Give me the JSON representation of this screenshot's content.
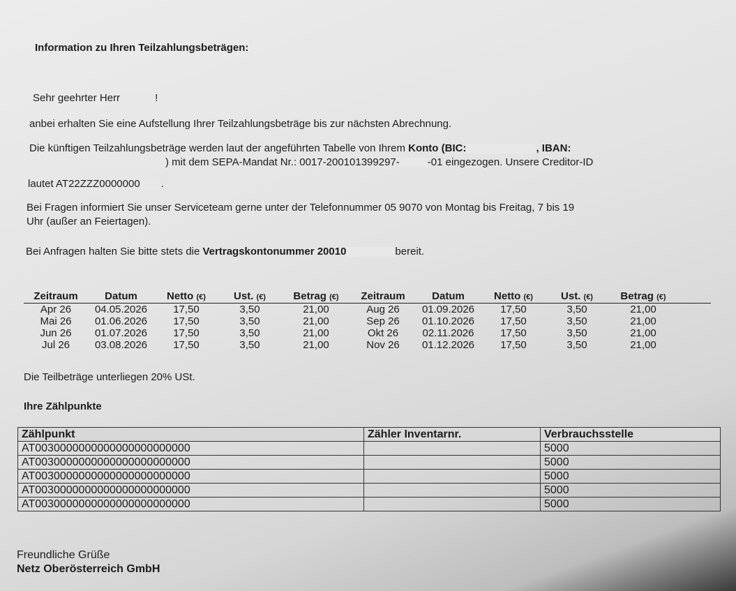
{
  "title": "Information zu Ihren Teilzahlungsbeträgen:",
  "greeting": {
    "prefix": "Sehr geehrter Herr",
    "suffix": "!"
  },
  "intro": "anbei erhalten Sie eine Aufstellung Ihrer Teilzahlungsbeträge bis zur nächsten Abrechnung.",
  "account_para": {
    "line1_a": "Die künftigen Teilzahlungsbeträge werden laut der angeführten Tabelle von Ihrem ",
    "line1_b": "Konto (BIC:",
    "line1_c": ", IBAN:",
    "line2_a": ") mit dem SEPA-Mandat Nr.: 0017-200101399297-",
    "line2_b": "-01 eingezogen. Unsere Creditor-ID",
    "line3_a": "lautet AT22ZZZ0000000",
    "line3_b": "."
  },
  "service_para": {
    "line1": "Bei Fragen informiert Sie unser Serviceteam gerne unter der Telefonnummer 05 9070 von Montag bis Freitag, 7 bis 19",
    "line2": "Uhr (außer an Feiertagen)."
  },
  "contract_para": {
    "a": "Bei Anfragen halten Sie bitte stets die ",
    "b": "Vertragskontonummer 20010",
    "c": "bereit."
  },
  "payments": {
    "headers": [
      {
        "label": "Zeitraum",
        "unit": ""
      },
      {
        "label": "Datum",
        "unit": ""
      },
      {
        "label": "Netto",
        "unit": "(€)"
      },
      {
        "label": "Ust.",
        "unit": "(€)"
      },
      {
        "label": "Betrag",
        "unit": "(€)"
      }
    ],
    "left": [
      [
        "Apr 26",
        "04.05.2026",
        "17,50",
        "3,50",
        "21,00"
      ],
      [
        "Mai 26",
        "01.06.2026",
        "17,50",
        "3,50",
        "21,00"
      ],
      [
        "Jun 26",
        "01.07.2026",
        "17,50",
        "3,50",
        "21,00"
      ],
      [
        "Jul 26",
        "03.08.2026",
        "17,50",
        "3,50",
        "21,00"
      ]
    ],
    "right": [
      [
        "Aug 26",
        "01.09.2026",
        "17,50",
        "3,50",
        "21,00"
      ],
      [
        "Sep 26",
        "01.10.2026",
        "17,50",
        "3,50",
        "21,00"
      ],
      [
        "Okt 26",
        "02.11.2026",
        "17,50",
        "3,50",
        "21,00"
      ],
      [
        "Nov 26",
        "01.12.2026",
        "17,50",
        "3,50",
        "21,00"
      ]
    ]
  },
  "vat_note": "Die Teilbeträge unterliegen 20% USt.",
  "meters": {
    "heading": "Ihre Zählpunkte",
    "headers": [
      "Zählpunkt",
      "Zähler Inventarnr.",
      "Verbrauchsstelle"
    ],
    "rows": [
      [
        "AT0030000000000000000000000",
        "",
        "5000"
      ],
      [
        "AT0030000000000000000000000",
        "",
        "5000"
      ],
      [
        "AT0030000000000000000000000",
        "",
        "5000"
      ],
      [
        "AT0030000000000000000000000",
        "",
        "5000"
      ],
      [
        "AT0030000000000000000000000",
        "",
        "5000"
      ]
    ]
  },
  "closing": {
    "line1": "Freundliche Grüße",
    "line2": "Netz Oberösterreich GmbH"
  }
}
